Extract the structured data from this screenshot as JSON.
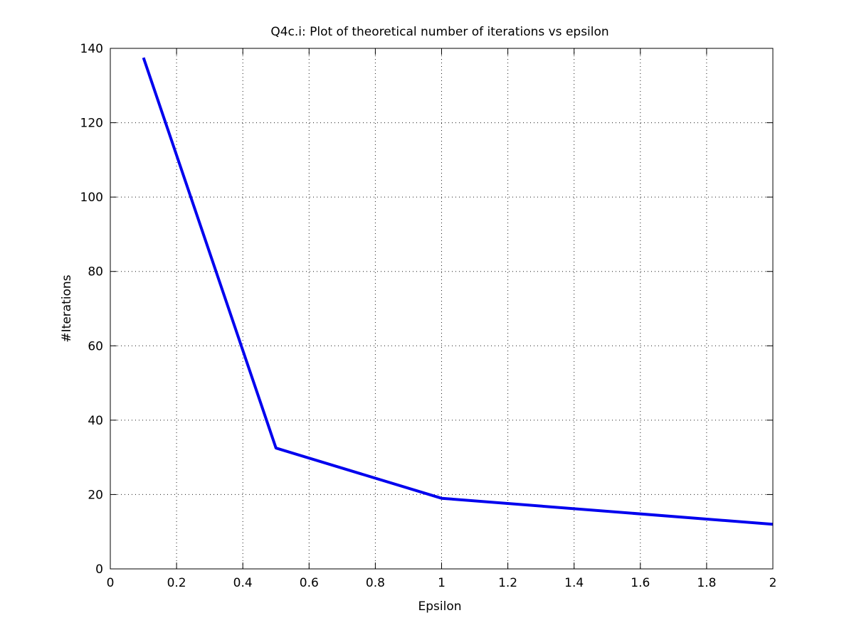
{
  "chart_data": {
    "type": "line",
    "title": "Q4c.i: Plot of theoretical number of iterations vs epsilon",
    "xlabel": "Epsilon",
    "ylabel": "#Iterations",
    "xlim": [
      0,
      2
    ],
    "ylim": [
      0,
      140
    ],
    "xticks": [
      0,
      0.2,
      0.4,
      0.6,
      0.8,
      1,
      1.2,
      1.4,
      1.6,
      1.8,
      2
    ],
    "xtick_labels": [
      "0",
      "0.2",
      "0.4",
      "0.6",
      "0.8",
      "1",
      "1.2",
      "1.4",
      "1.6",
      "1.8",
      "2"
    ],
    "yticks": [
      0,
      20,
      40,
      60,
      80,
      100,
      120,
      140
    ],
    "ytick_labels": [
      "0",
      "20",
      "40",
      "60",
      "80",
      "100",
      "120",
      "140"
    ],
    "grid": true,
    "series": [
      {
        "color": "#0000ee",
        "x": [
          0.1,
          0.5,
          1,
          2
        ],
        "y": [
          137.5,
          32.5,
          19,
          12
        ]
      }
    ]
  }
}
